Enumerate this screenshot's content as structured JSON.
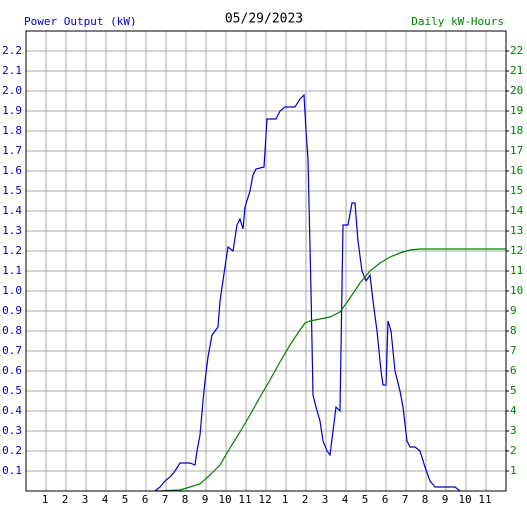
{
  "chart_data": {
    "type": "line",
    "title": "05/29/2023",
    "ylabel": "Power Output (kW)",
    "y2label": "Daily kW-Hours",
    "xlim": [
      0,
      24
    ],
    "xticks": [
      1,
      2,
      3,
      4,
      5,
      6,
      7,
      8,
      9,
      10,
      11,
      12,
      {
        "value": 13,
        "label": "1"
      },
      {
        "value": 14,
        "label": "2"
      },
      {
        "value": 15,
        "label": "3"
      },
      {
        "value": 16,
        "label": "4"
      },
      {
        "value": 17,
        "label": "5"
      },
      {
        "value": 18,
        "label": "6"
      },
      {
        "value": 19,
        "label": "7"
      },
      {
        "value": 20,
        "label": "8"
      },
      {
        "value": 21,
        "label": "9"
      },
      {
        "value": 22,
        "label": "10"
      },
      {
        "value": 23,
        "label": "11"
      }
    ],
    "ylim": [
      0,
      2.3
    ],
    "yticks": [
      0.1,
      0.2,
      0.3,
      0.4,
      0.5,
      0.6,
      0.7,
      0.8,
      0.9,
      {
        "value": 1,
        "label": "1.0"
      },
      1.1,
      1.2,
      1.3,
      1.4,
      1.5,
      1.6,
      1.7,
      1.8,
      1.9,
      {
        "value": 2,
        "label": "2.0"
      },
      2.1,
      2.2
    ],
    "y2lim": [
      0,
      23
    ],
    "y2ticks": [
      1,
      2,
      3,
      4,
      5,
      6,
      7,
      8,
      9,
      10,
      11,
      12,
      13,
      14,
      15,
      16,
      17,
      18,
      19,
      20,
      21,
      22
    ],
    "grid": true,
    "ylabel_color": "#0000cc",
    "y2label_color": "#008000",
    "series": [
      {
        "color": "#0000cc",
        "x": [
          6.45,
          6.7,
          6.95,
          7.2,
          7.45,
          7.7,
          8.2,
          8.45,
          8.55,
          8.7,
          8.85,
          8.95,
          9.1,
          9.3,
          9.6,
          9.7,
          9.95,
          10.1,
          10.35,
          10.55,
          10.7,
          10.85,
          10.95,
          11.2,
          11.35,
          11.5,
          11.9,
          12.05,
          12.5,
          12.7,
          12.95,
          13.45,
          13.7,
          13.9,
          14.0,
          14.1,
          14.25,
          14.35,
          14.5,
          14.7,
          14.85,
          15.05,
          15.2,
          15.35,
          15.5,
          15.7,
          15.85,
          16.1,
          16.3,
          16.45,
          16.6,
          16.8,
          17.0,
          17.2,
          17.35,
          17.55,
          17.75,
          17.85,
          18.0,
          18.1,
          18.25,
          18.45,
          18.7,
          18.85,
          19.05,
          19.2,
          19.45,
          19.7,
          19.95,
          20.2,
          20.45,
          20.95,
          21.45,
          21.7
        ],
        "values": [
          0,
          0.02,
          0.05,
          0.07,
          0.1,
          0.14,
          0.14,
          0.13,
          0.2,
          0.28,
          0.45,
          0.55,
          0.67,
          0.78,
          0.82,
          0.95,
          1.12,
          1.22,
          1.2,
          1.33,
          1.36,
          1.31,
          1.42,
          1.5,
          1.58,
          1.61,
          1.62,
          1.86,
          1.86,
          1.9,
          1.92,
          1.92,
          1.96,
          1.98,
          1.8,
          1.66,
          1.0,
          0.48,
          0.42,
          0.35,
          0.25,
          0.2,
          0.18,
          0.3,
          0.42,
          0.4,
          1.33,
          1.33,
          1.44,
          1.44,
          1.25,
          1.1,
          1.05,
          1.08,
          0.95,
          0.8,
          0.6,
          0.53,
          0.53,
          0.85,
          0.8,
          0.6,
          0.5,
          0.42,
          0.25,
          0.22,
          0.22,
          0.2,
          0.12,
          0.05,
          0.02,
          0.02,
          0.02,
          0
        ]
      },
      {
        "color": "#008000",
        "axis": "y2",
        "x": [
          6.5,
          7.7,
          8.2,
          8.7,
          9.2,
          9.7,
          10.2,
          10.7,
          11.2,
          11.7,
          12.2,
          12.7,
          13.2,
          13.7,
          13.95,
          14.2,
          14.7,
          15.2,
          15.7,
          15.95,
          16.2,
          16.7,
          17.2,
          17.7,
          18.2,
          18.7,
          19.2,
          19.7,
          24
        ],
        "values": [
          0,
          0.05,
          0.2,
          0.35,
          0.8,
          1.3,
          2.15,
          2.95,
          3.8,
          4.7,
          5.55,
          6.45,
          7.3,
          8.05,
          8.4,
          8.5,
          8.6,
          8.7,
          8.95,
          9.3,
          9.65,
          10.4,
          11.0,
          11.4,
          11.7,
          11.9,
          12.05,
          12.1,
          12.1
        ]
      }
    ]
  }
}
